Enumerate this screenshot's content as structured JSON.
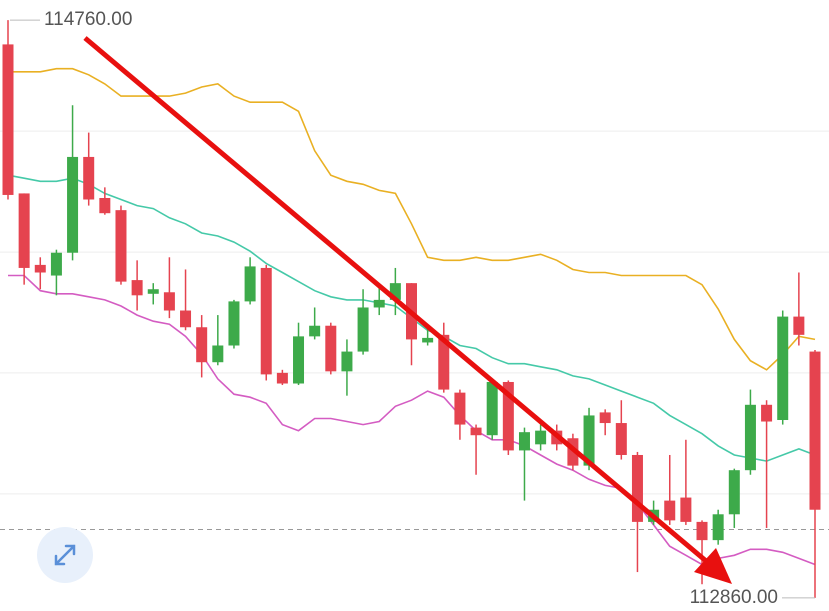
{
  "chart_data": {
    "type": "candlestick",
    "ylim": [
      112817,
      114826
    ],
    "grid_lines": [
      114395,
      113997,
      113600,
      113202
    ],
    "up_color": "#3daa4a",
    "down_color": "#e5434f",
    "open": [
      114680,
      114190,
      113955,
      113920,
      113995,
      114310,
      114175,
      114135,
      113905,
      113860,
      113865,
      113805,
      113750,
      113635,
      113690,
      113835,
      113945,
      113600,
      113565,
      113720,
      113755,
      113605,
      113670,
      113815,
      113840,
      113895,
      113700,
      113725,
      113535,
      113420,
      113395,
      113570,
      113345,
      113365,
      113410,
      113385,
      113295,
      113470,
      113435,
      113330,
      113110,
      113180,
      113190,
      113110,
      113050,
      113135,
      113280,
      113495,
      113445,
      113785,
      113670
    ],
    "high": [
      114760,
      114190,
      113980,
      114005,
      114480,
      114390,
      114210,
      114150,
      113970,
      113895,
      113980,
      113940,
      113790,
      113790,
      113840,
      113980,
      113955,
      113610,
      113765,
      113815,
      113765,
      113710,
      113875,
      113890,
      113945,
      113895,
      113755,
      113765,
      113545,
      113430,
      113575,
      113575,
      113420,
      113430,
      113430,
      113400,
      113485,
      113480,
      113510,
      113340,
      113180,
      113330,
      113380,
      113115,
      113150,
      113285,
      113545,
      113510,
      113805,
      113930,
      113675
    ],
    "low": [
      114170,
      113890,
      113875,
      113855,
      113970,
      114150,
      114120,
      113890,
      113805,
      113825,
      113780,
      113740,
      113585,
      113625,
      113680,
      113825,
      113575,
      113560,
      113560,
      113710,
      113595,
      113525,
      113660,
      113790,
      113790,
      113625,
      113690,
      113535,
      113380,
      113265,
      113380,
      113330,
      113180,
      113345,
      113345,
      113280,
      113280,
      113395,
      113315,
      112945,
      113100,
      113100,
      113100,
      112905,
      113035,
      113090,
      113265,
      113090,
      113430,
      113690,
      112860
    ],
    "close": [
      114185,
      113945,
      113930,
      113995,
      114310,
      114170,
      114125,
      113900,
      113855,
      113875,
      113805,
      113750,
      113635,
      113690,
      113835,
      113950,
      113595,
      113565,
      113720,
      113755,
      113605,
      113670,
      113815,
      113840,
      113895,
      113710,
      113715,
      113545,
      113430,
      113395,
      113570,
      113345,
      113405,
      113410,
      113365,
      113295,
      113460,
      113435,
      113330,
      113110,
      113150,
      113115,
      113110,
      113050,
      113135,
      113280,
      113495,
      113440,
      113785,
      113725,
      113150
    ],
    "upper_band": {
      "color": "#e9b023",
      "values": [
        114590,
        114590,
        114590,
        114600,
        114600,
        114580,
        114550,
        114510,
        114510,
        114510,
        114510,
        114520,
        114540,
        114550,
        114510,
        114490,
        114490,
        114490,
        114460,
        114330,
        114250,
        114230,
        114220,
        114200,
        114190,
        114090,
        113980,
        113970,
        113970,
        113980,
        113970,
        113970,
        113980,
        113990,
        113970,
        113940,
        113930,
        113930,
        113920,
        113920,
        113920,
        113920,
        113920,
        113890,
        113810,
        113710,
        113640,
        113610,
        113660,
        113720,
        113710
      ]
    },
    "middle_band": {
      "color": "#45c9a8",
      "values": [
        114250,
        114240,
        114230,
        114230,
        114240,
        114220,
        114190,
        114170,
        114150,
        114140,
        114110,
        114090,
        114060,
        114050,
        114030,
        114000,
        113960,
        113930,
        113900,
        113870,
        113850,
        113840,
        113840,
        113830,
        113820,
        113780,
        113740,
        113720,
        113690,
        113680,
        113650,
        113630,
        113630,
        113620,
        113610,
        113590,
        113580,
        113560,
        113540,
        113520,
        113500,
        113460,
        113430,
        113400,
        113360,
        113330,
        113320,
        113310,
        113330,
        113350,
        113330
      ]
    },
    "lower_band": {
      "color": "#d45cc2",
      "values": [
        113920,
        113920,
        113870,
        113860,
        113860,
        113850,
        113840,
        113820,
        113790,
        113770,
        113760,
        113720,
        113660,
        113580,
        113530,
        113520,
        113500,
        113430,
        113410,
        113450,
        113450,
        113440,
        113430,
        113440,
        113490,
        113510,
        113540,
        113520,
        113460,
        113410,
        113380,
        113380,
        113360,
        113330,
        113300,
        113280,
        113250,
        113230,
        113220,
        113170,
        113100,
        113030,
        113000,
        112970,
        112990,
        113000,
        113020,
        113020,
        113010,
        112990,
        112970
      ]
    },
    "price_line": 113085,
    "max_label": {
      "value": 114760,
      "label": "114760.00"
    },
    "min_label": {
      "value": 112860,
      "label": "112860.00"
    }
  }
}
